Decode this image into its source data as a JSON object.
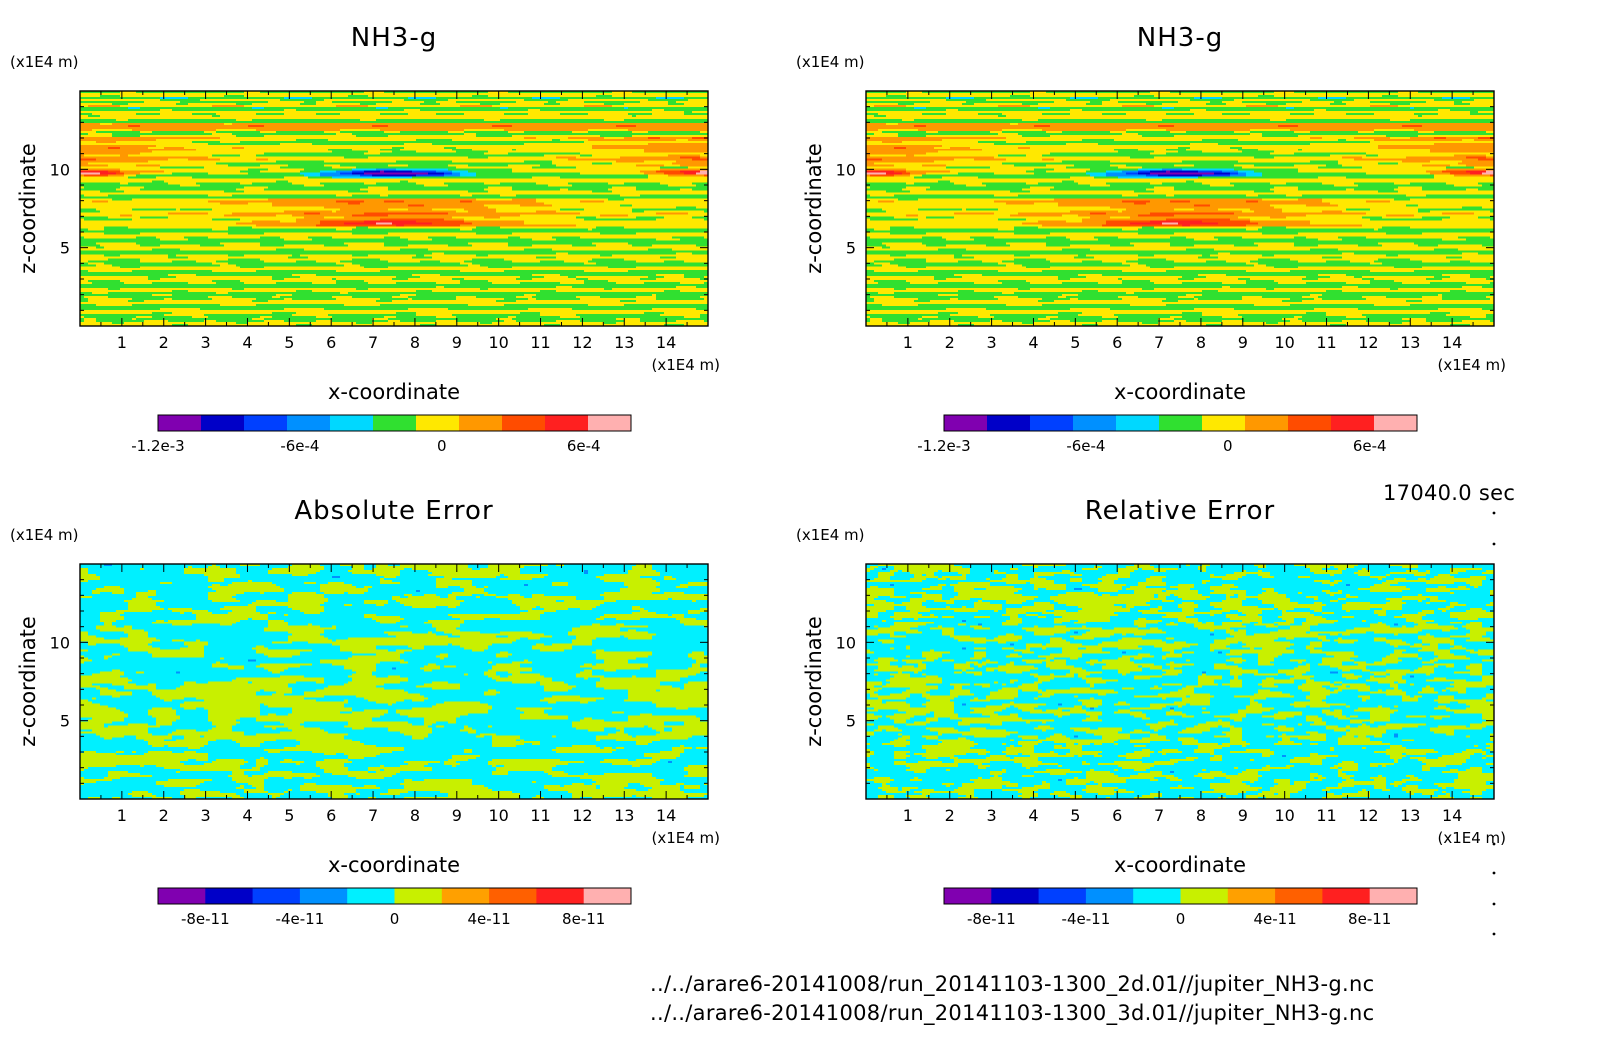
{
  "figure": {
    "time_label": "17040.0 sec",
    "file_lines": [
      "../../arare6-20141008/run_20141103-1300_2d.01//jupiter_NH3-g.nc",
      "../../arare6-20141008/run_20141103-1300_3d.01//jupiter_NH3-g.nc"
    ]
  },
  "chart_data": [
    {
      "type": "heatmap",
      "title": "NH3-g",
      "xlabel": "x-coordinate",
      "ylabel": "z-coordinate",
      "x_unit": "(x1E4 m)",
      "y_unit": "(x1E4 m)",
      "xlim": [
        0,
        15
      ],
      "ylim": [
        0,
        15
      ],
      "x_ticks": [
        1,
        2,
        3,
        4,
        5,
        6,
        7,
        8,
        9,
        10,
        11,
        12,
        13,
        14
      ],
      "y_ticks": [
        5,
        10
      ],
      "field": "nh3",
      "colorbar": {
        "levels": [
          -0.0012,
          -0.001,
          -0.0008,
          -0.0006,
          -0.0004,
          -0.0002,
          0,
          0.0002,
          0.0004,
          0.0006,
          0.0008
        ],
        "colors": [
          "#8000b0",
          "#0000c8",
          "#0040ff",
          "#0090ff",
          "#00d8ff",
          "#30e030",
          "#ffe800",
          "#ff9800",
          "#ff4c00",
          "#ff2020",
          "#ffb0b0"
        ],
        "tick_values": [
          -0.0012,
          -0.0006,
          0,
          0.0006
        ],
        "tick_labels": [
          "-1.2e-3",
          "-6e-4",
          "0",
          "6e-4"
        ]
      }
    },
    {
      "type": "heatmap",
      "title": "NH3-g",
      "xlabel": "x-coordinate",
      "ylabel": "z-coordinate",
      "x_unit": "(x1E4 m)",
      "y_unit": "(x1E4 m)",
      "xlim": [
        0,
        15
      ],
      "ylim": [
        0,
        15
      ],
      "x_ticks": [
        1,
        2,
        3,
        4,
        5,
        6,
        7,
        8,
        9,
        10,
        11,
        12,
        13,
        14
      ],
      "y_ticks": [
        5,
        10
      ],
      "field": "nh3",
      "colorbar": {
        "levels": [
          -0.0012,
          -0.001,
          -0.0008,
          -0.0006,
          -0.0004,
          -0.0002,
          0,
          0.0002,
          0.0004,
          0.0006,
          0.0008
        ],
        "colors": [
          "#8000b0",
          "#0000c8",
          "#0040ff",
          "#0090ff",
          "#00d8ff",
          "#30e030",
          "#ffe800",
          "#ff9800",
          "#ff4c00",
          "#ff2020",
          "#ffb0b0"
        ],
        "tick_values": [
          -0.0012,
          -0.0006,
          0,
          0.0006
        ],
        "tick_labels": [
          "-1.2e-3",
          "-6e-4",
          "0",
          "6e-4"
        ]
      }
    },
    {
      "type": "heatmap",
      "title": "Absolute Error",
      "xlabel": "x-coordinate",
      "ylabel": "z-coordinate",
      "x_unit": "(x1E4 m)",
      "y_unit": "(x1E4 m)",
      "xlim": [
        0,
        15
      ],
      "ylim": [
        0,
        15
      ],
      "x_ticks": [
        1,
        2,
        3,
        4,
        5,
        6,
        7,
        8,
        9,
        10,
        11,
        12,
        13,
        14
      ],
      "y_ticks": [
        5,
        10
      ],
      "field": "noise",
      "colorbar": {
        "levels": [
          -1e-10,
          -8e-11,
          -6e-11,
          -4e-11,
          -2e-11,
          0,
          2e-11,
          4e-11,
          6e-11,
          8e-11,
          1e-10
        ],
        "colors": [
          "#8000b0",
          "#0000c8",
          "#0040ff",
          "#0090ff",
          "#00f0ff",
          "#c8f000",
          "#ffa000",
          "#ff6000",
          "#ff2020",
          "#ffb0b0"
        ],
        "tick_values": [
          -8e-11,
          -4e-11,
          0,
          4e-11,
          8e-11
        ],
        "tick_labels": [
          "-8e-11",
          "-4e-11",
          "0",
          "4e-11",
          "8e-11"
        ]
      }
    },
    {
      "type": "heatmap",
      "title": "Relative Error",
      "xlabel": "x-coordinate",
      "ylabel": "z-coordinate",
      "x_unit": "(x1E4 m)",
      "y_unit": "(x1E4 m)",
      "xlim": [
        0,
        15
      ],
      "ylim": [
        0,
        15
      ],
      "x_ticks": [
        1,
        2,
        3,
        4,
        5,
        6,
        7,
        8,
        9,
        10,
        11,
        12,
        13,
        14
      ],
      "y_ticks": [
        5,
        10
      ],
      "field": "noise_fine",
      "colorbar": {
        "levels": [
          -1e-10,
          -8e-11,
          -6e-11,
          -4e-11,
          -2e-11,
          0,
          2e-11,
          4e-11,
          6e-11,
          8e-11,
          1e-10
        ],
        "colors": [
          "#8000b0",
          "#0000c8",
          "#0040ff",
          "#0090ff",
          "#00f0ff",
          "#c8f000",
          "#ffa000",
          "#ff6000",
          "#ff2020",
          "#ffb0b0"
        ],
        "tick_values": [
          -8e-11,
          -4e-11,
          0,
          4e-11,
          8e-11
        ],
        "tick_labels": [
          "-8e-11",
          "-4e-11",
          "0",
          "4e-11",
          "8e-11"
        ]
      }
    }
  ]
}
